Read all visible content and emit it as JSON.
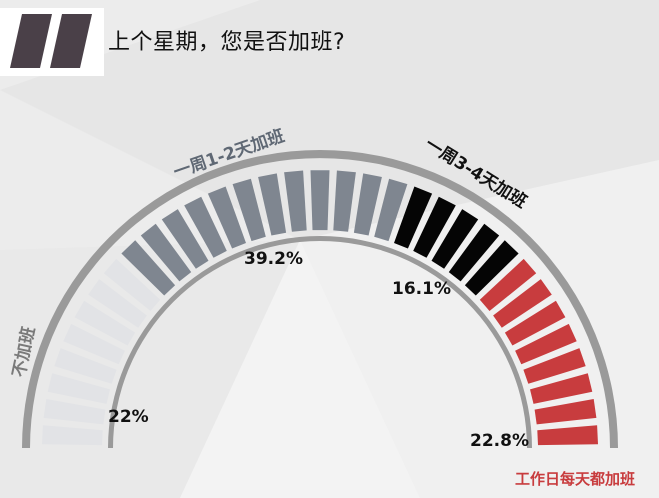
{
  "question": "上个星期，您是否加班?",
  "colors": {
    "none": "#e2e3e6",
    "one_two": "#7f8690",
    "three_four": "#050505",
    "daily": "#c83c3e",
    "ring": "#9a9a9a",
    "label_none": "#7a7a7a",
    "label_one_two": "#5f6874",
    "label_three_four": "#111111",
    "label_daily": "#c83c3e"
  },
  "chart_data": {
    "type": "gauge",
    "title": "上个星期，您是否加班?",
    "categories": [
      "不加班",
      "一周1-2天加班",
      "一周3-4天加班",
      "工作日每天都加班"
    ],
    "values": [
      22,
      39.2,
      16.1,
      22.8
    ],
    "value_labels": [
      "22%",
      "39.2%",
      "16.1%",
      "22.8%"
    ],
    "segment_counts": [
      8,
      12,
      5,
      8
    ]
  }
}
